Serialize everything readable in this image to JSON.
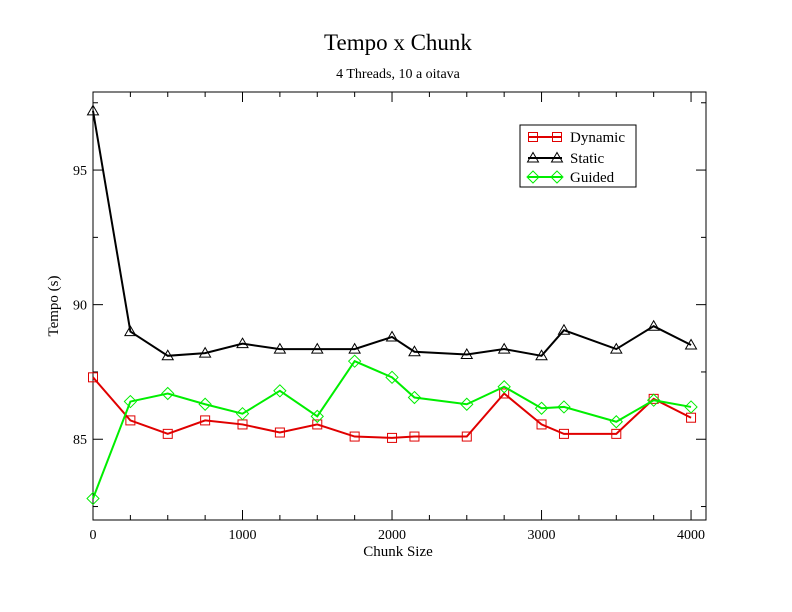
{
  "chart_data": {
    "type": "line",
    "title": "Tempo x Chunk",
    "subtitle": "4 Threads, 10 a oitava",
    "xlabel": "Chunk Size",
    "ylabel": "Tempo (s)",
    "xlim": [
      0,
      4100
    ],
    "ylim": [
      82.0,
      97.9
    ],
    "xticks": [
      0,
      1000,
      2000,
      3000,
      4000
    ],
    "xtick_labels": [
      "0",
      "1000",
      "2000",
      "3000",
      "4000"
    ],
    "yticks": [
      85,
      90,
      95
    ],
    "ytick_labels": [
      "85",
      "90",
      "95"
    ],
    "grid": false,
    "legend_position": "top-right",
    "series": [
      {
        "name": "Dynamic",
        "color": "#e00000",
        "marker": "square",
        "x": [
          0,
          250,
          500,
          750,
          1000,
          1250,
          1500,
          1750,
          2000,
          2150,
          2500,
          2750,
          3000,
          3150,
          3500,
          3750,
          4000
        ],
        "y": [
          87.3,
          85.7,
          85.2,
          85.7,
          85.55,
          85.25,
          85.55,
          85.1,
          85.05,
          85.1,
          85.1,
          86.7,
          85.55,
          85.2,
          85.2,
          86.5,
          85.8
        ]
      },
      {
        "name": "Static",
        "color": "#000000",
        "marker": "triangle",
        "x": [
          0,
          250,
          500,
          750,
          1000,
          1250,
          1500,
          1750,
          2000,
          2150,
          2500,
          2750,
          3000,
          3150,
          3500,
          3750,
          4000
        ],
        "y": [
          97.2,
          89.0,
          88.1,
          88.2,
          88.55,
          88.35,
          88.35,
          88.35,
          88.8,
          88.25,
          88.15,
          88.35,
          88.1,
          89.05,
          88.35,
          89.2,
          88.5
        ]
      },
      {
        "name": "Guided",
        "color": "#00ee00",
        "marker": "diamond",
        "x": [
          0,
          250,
          500,
          750,
          1000,
          1250,
          1500,
          1750,
          2000,
          2150,
          2500,
          2750,
          3000,
          3150,
          3500,
          3750,
          4000
        ],
        "y": [
          82.8,
          86.4,
          86.7,
          86.3,
          85.95,
          86.8,
          85.85,
          87.9,
          87.3,
          86.55,
          86.3,
          86.95,
          86.15,
          86.2,
          85.65,
          86.45,
          86.2
        ]
      }
    ]
  }
}
